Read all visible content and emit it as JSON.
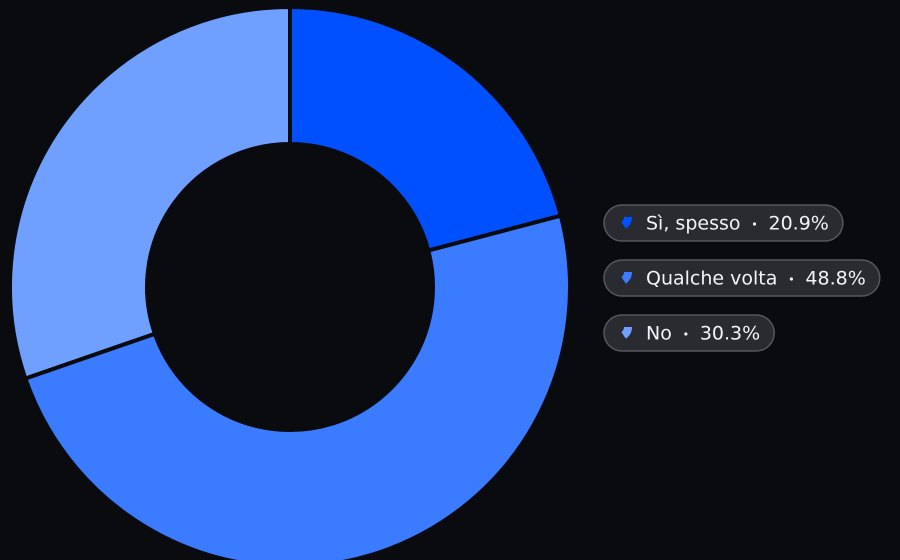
{
  "chart_data": {
    "type": "pie",
    "categories": [
      "Sì, spesso",
      "Qualche volta",
      "No"
    ],
    "values": [
      20.9,
      48.8,
      30.3
    ],
    "value_labels": [
      "20.9%",
      "48.8%",
      "30.3%"
    ],
    "colors": [
      "#0050ff",
      "#3b7bff",
      "#6f9fff"
    ],
    "donut": true,
    "legend": "right"
  }
}
